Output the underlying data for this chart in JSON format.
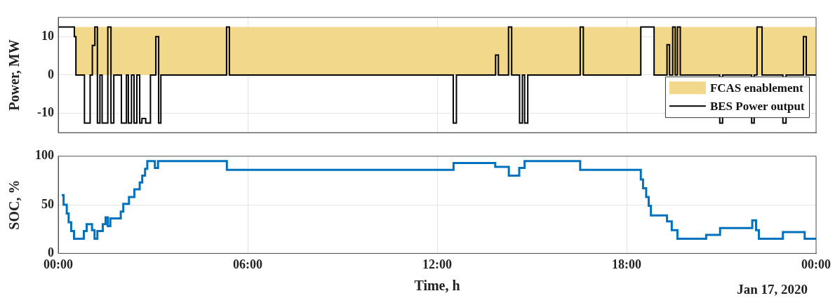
{
  "chart_data": [
    {
      "type": "step",
      "ylabel": "Power, MW",
      "xlim": [
        0,
        24
      ],
      "xticks": [
        {
          "value": 0,
          "label": null
        },
        {
          "value": 6,
          "label": null
        },
        {
          "value": 12,
          "label": null
        },
        {
          "value": 18,
          "label": null
        },
        {
          "value": 24,
          "label": null
        }
      ],
      "ylim": [
        -15,
        15
      ],
      "yticks": [
        -10,
        0,
        10
      ],
      "tick_labels": "y",
      "grid": true,
      "legend": "bottom right",
      "series": [
        {
          "name": "FCAS enablement",
          "type": "area",
          "color": "#f2d88a",
          "x": [
            0.53,
            18.45,
            18.87,
            24
          ],
          "values": [
            12.5,
            0,
            12.5,
            12.5
          ]
        },
        {
          "name": "BES Power output",
          "color": "#000000",
          "x": [
            0,
            0.51,
            0.56,
            0.83,
            1.01,
            1.08,
            1.16,
            1.24,
            1.32,
            1.39,
            1.57,
            1.67,
            1.76,
            2.0,
            2.16,
            2.22,
            2.32,
            2.4,
            2.49,
            2.58,
            2.65,
            2.77,
            2.92,
            3.09,
            3.18,
            3.25,
            5.33,
            5.42,
            12.51,
            12.61,
            13.85,
            13.94,
            14.26,
            14.36,
            14.61,
            14.7,
            14.77,
            14.87,
            16.53,
            16.63,
            18.45,
            18.87,
            19.28,
            19.36,
            19.46,
            19.54,
            19.61,
            19.7,
            20.58,
            20.65,
            20.95,
            21.04,
            21.96,
            22.04,
            22.13,
            22.29,
            22.95,
            23.05,
            23.6,
            23.69,
            24
          ],
          "values": [
            12.5,
            10,
            0,
            -12.5,
            0,
            7.7,
            12.5,
            -12.5,
            0,
            -12.5,
            12.5,
            -12.5,
            0,
            -12.5,
            0,
            -12.5,
            0,
            -12.5,
            0,
            -12.5,
            -11.3,
            -12.5,
            0,
            10,
            -12.5,
            0,
            12.5,
            0,
            -12.5,
            0,
            5.2,
            0,
            12.5,
            0,
            -12.5,
            0,
            -12.5,
            0,
            12.5,
            0,
            12.5,
            0,
            7.9,
            0,
            12.5,
            0,
            12.5,
            0,
            null,
            0,
            -12.5,
            0,
            -12.5,
            0,
            12.5,
            0,
            -12.5,
            0,
            10,
            0,
            0
          ]
        }
      ]
    },
    {
      "type": "step",
      "ylabel": "SOC, %",
      "xlabel": "Time, h",
      "xlim": [
        0,
        24
      ],
      "xticks": [
        {
          "value": 0,
          "label": "00:00"
        },
        {
          "value": 6,
          "label": "06:00"
        },
        {
          "value": 12,
          "label": "12:00"
        },
        {
          "value": 18,
          "label": "18:00"
        },
        {
          "value": 24,
          "label": "00:00"
        }
      ],
      "ylim": [
        0,
        100
      ],
      "yticks": [
        0,
        50,
        100
      ],
      "grid": true,
      "annotations": [
        "Jan 17, 2020"
      ],
      "series": [
        {
          "color": "#0072bd",
          "x": [
            0.11,
            0.17,
            0.27,
            0.33,
            0.41,
            0.5,
            0.81,
            0.9,
            1.07,
            1.15,
            1.24,
            1.41,
            1.5,
            1.57,
            1.65,
            1.98,
            2.06,
            2.24,
            2.41,
            2.58,
            2.66,
            2.75,
            2.82,
            3.06,
            3.16,
            5.34,
            12.52,
            13.84,
            14.27,
            14.6,
            14.77,
            16.53,
            18.45,
            18.52,
            18.62,
            18.7,
            18.77,
            19.28,
            19.43,
            19.61,
            20.52,
            20.96,
            21.98,
            22.1,
            22.19,
            22.95,
            23.64,
            24
          ],
          "values": [
            60,
            50,
            41,
            32,
            23,
            15,
            23,
            30,
            24,
            15,
            23,
            30,
            37,
            28,
            36,
            43,
            51,
            58,
            66,
            73,
            80,
            87,
            95,
            88,
            95,
            86,
            93,
            89,
            80,
            88,
            95,
            86,
            76,
            67,
            58,
            49,
            39,
            33,
            24,
            15,
            19,
            26,
            34,
            24,
            15,
            22,
            15,
            15
          ]
        }
      ]
    }
  ]
}
